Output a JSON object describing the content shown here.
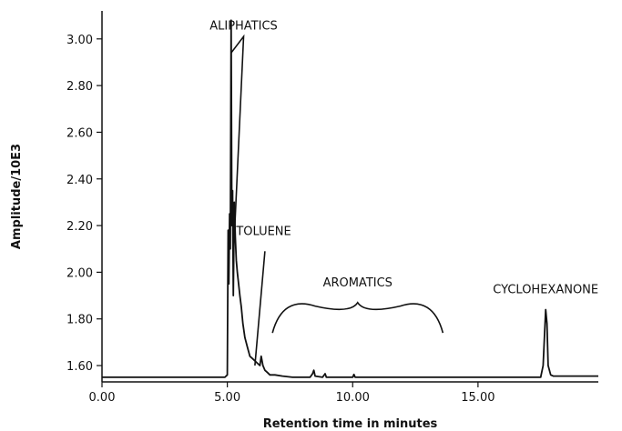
{
  "chart_data": {
    "type": "line",
    "title": "",
    "xlabel": "Retention time in minutes",
    "ylabel": "Amplitude/10E3",
    "xlim": [
      0,
      19.8
    ],
    "ylim": [
      1.53,
      3.12
    ],
    "x_ticks": [
      0,
      5,
      10,
      15
    ],
    "x_tick_labels": [
      "0.00",
      "5.00",
      "10.00",
      "15.00"
    ],
    "y_ticks": [
      1.6,
      1.8,
      2.0,
      2.2,
      2.4,
      2.6,
      2.8,
      3.0
    ],
    "y_tick_labels": [
      "1.60",
      "1.80",
      "2.00",
      "2.20",
      "2.40",
      "2.60",
      "2.80",
      "3.00"
    ],
    "grid": false,
    "legend": "none",
    "line_color": "#111111",
    "series": [
      {
        "x": [
          0.0,
          2.0,
          4.0,
          4.9,
          5.0,
          5.03,
          5.06,
          5.09,
          5.12,
          5.15,
          5.18,
          5.21,
          5.24,
          5.28,
          5.32,
          5.36,
          5.4,
          5.45,
          5.5,
          5.56,
          5.62,
          5.7,
          5.8,
          5.9,
          6.0,
          6.1,
          6.2,
          6.3,
          6.35,
          6.42,
          6.5,
          6.6,
          6.7,
          6.9,
          7.2,
          7.6,
          8.0,
          8.3,
          8.4,
          8.45,
          8.5,
          8.8,
          8.9,
          8.95,
          9.0,
          9.5,
          10.0,
          10.05,
          10.1,
          10.15,
          10.3,
          11.0,
          13.0,
          15.0,
          17.0,
          17.5,
          17.6,
          17.7,
          17.75,
          17.8,
          17.9,
          18.0,
          18.5,
          19.0,
          19.8
        ],
        "y": [
          1.55,
          1.55,
          1.55,
          1.55,
          1.56,
          2.18,
          1.95,
          2.25,
          2.1,
          3.08,
          2.2,
          2.35,
          1.9,
          2.3,
          2.15,
          2.05,
          2.0,
          1.95,
          1.9,
          1.85,
          1.78,
          1.72,
          1.68,
          1.64,
          1.63,
          1.62,
          1.61,
          1.6,
          1.64,
          1.6,
          1.58,
          1.57,
          1.56,
          1.56,
          1.555,
          1.55,
          1.55,
          1.55,
          1.565,
          1.58,
          1.555,
          1.55,
          1.565,
          1.55,
          1.55,
          1.55,
          1.55,
          1.562,
          1.55,
          1.55,
          1.55,
          1.55,
          1.55,
          1.55,
          1.55,
          1.55,
          1.6,
          1.84,
          1.78,
          1.6,
          1.56,
          1.555,
          1.555,
          1.555,
          1.555
        ]
      }
    ],
    "annotations": [
      {
        "text": "ALIPHATICS",
        "x": 5.65,
        "y": 3.04
      },
      {
        "text": "TOLUENE",
        "x": 6.45,
        "y": 2.16
      },
      {
        "text": "AROMATICS",
        "x": 10.2,
        "y": 1.94
      },
      {
        "text": "CYCLOHEXANONE",
        "x": 17.7,
        "y": 1.91
      }
    ]
  }
}
